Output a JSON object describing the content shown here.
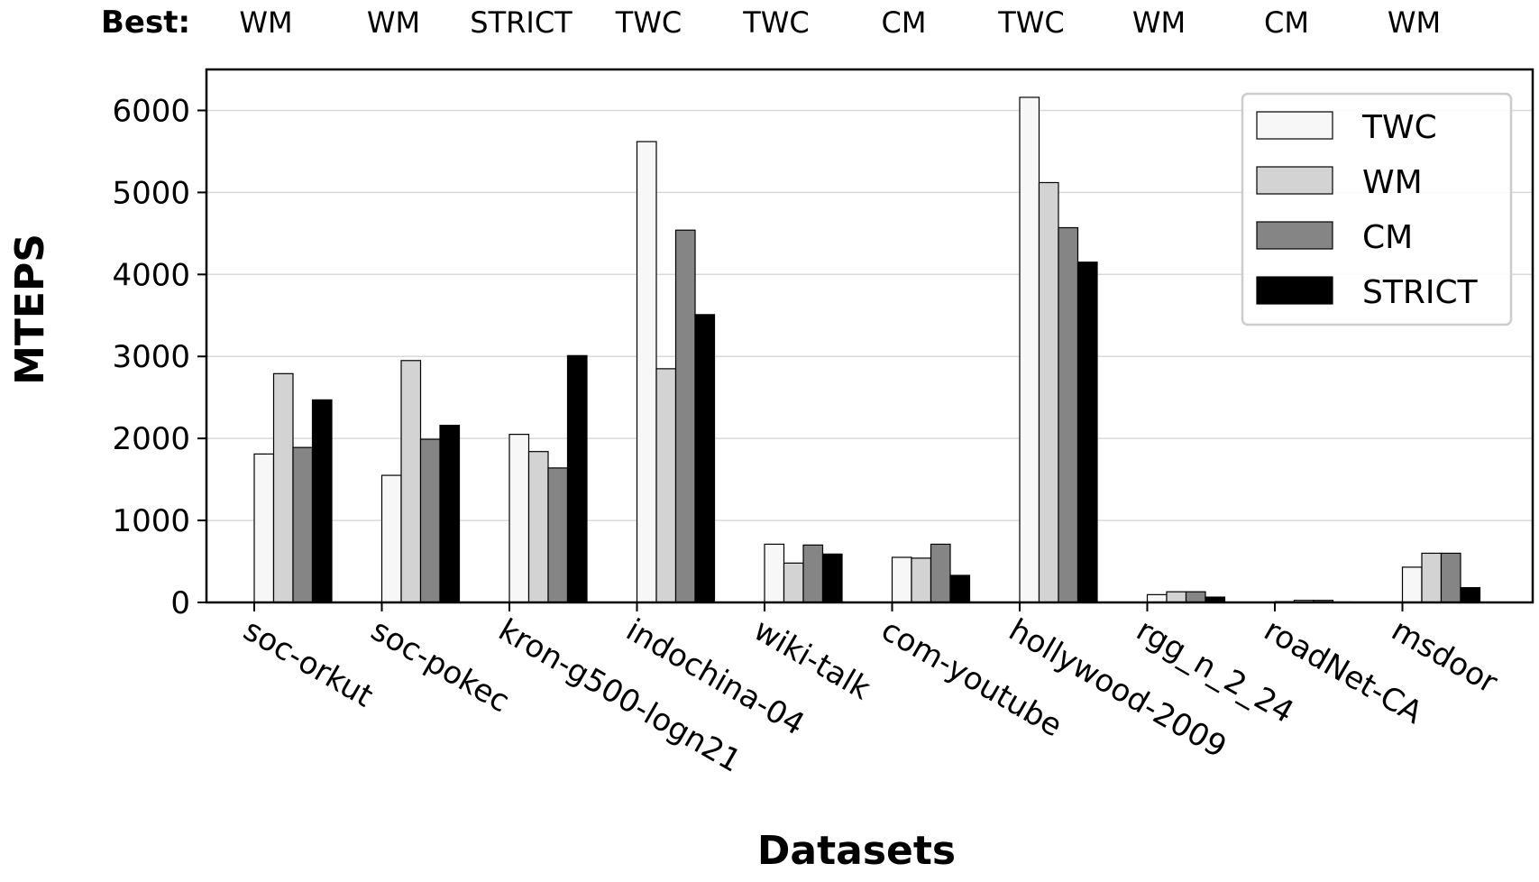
{
  "chart_data": {
    "type": "bar",
    "xlabel": "Datasets",
    "ylabel": "MTEPS",
    "ylim": [
      0,
      6500
    ],
    "yticks": [
      0,
      1000,
      2000,
      3000,
      4000,
      5000,
      6000
    ],
    "grid": "horizontal",
    "legend_position": "top-right",
    "best_title": "Best:",
    "categories": [
      "soc-orkut",
      "soc-pokec",
      "kron-g500-logn21",
      "indochina-04",
      "wiki-talk",
      "com-youtube",
      "hollywood-2009",
      "rgg_n_2_24",
      "roadNet-CA",
      "msdoor"
    ],
    "best": [
      "WM",
      "WM",
      "STRICT",
      "TWC",
      "TWC",
      "CM",
      "TWC",
      "WM",
      "CM",
      "WM"
    ],
    "series": [
      {
        "name": "TWC",
        "color": "#f7f7f7",
        "values": [
          1810,
          1550,
          2050,
          5620,
          710,
          550,
          6160,
          95,
          10,
          430
        ]
      },
      {
        "name": "WM",
        "color": "#d3d3d3",
        "values": [
          2790,
          2950,
          1840,
          2850,
          480,
          540,
          5120,
          130,
          25,
          600
        ]
      },
      {
        "name": "CM",
        "color": "#858585",
        "values": [
          1890,
          1990,
          1640,
          4540,
          700,
          710,
          4570,
          130,
          25,
          600
        ]
      },
      {
        "name": "STRICT",
        "color": "#000000",
        "values": [
          2470,
          2160,
          3010,
          3510,
          590,
          330,
          4150,
          65,
          5,
          180
        ]
      }
    ]
  }
}
